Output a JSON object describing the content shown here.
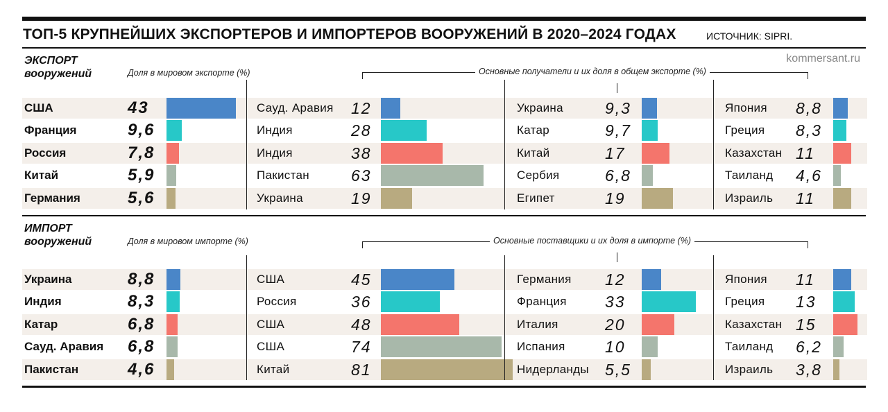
{
  "header": {
    "title": "ТОП-5 КРУПНЕЙШИХ ЭКСПОРТЕРОВ И ИМПОРТЕРОВ ВООРУЖЕНИЙ В 2020–2024 ГОДАХ",
    "source": "ИСТОЧНИК: SIPRI.",
    "site": "kommersant.ru"
  },
  "colors": [
    "#4a86c8",
    "#27c8c8",
    "#f4756c",
    "#a8b8aa",
    "#b8aa80"
  ],
  "export": {
    "title_line1": "ЭКСПОРТ",
    "title_line2": "вооружений",
    "share_label": "Доля в мировом экспорте (%)",
    "partners_label": "Основные получатели и их доля в общем экспорте (%)"
  },
  "import": {
    "title_line1": "ИМПОРТ",
    "title_line2": "вооружений",
    "share_label": "Доля в мировом импорте (%)",
    "partners_label": "Основные поставщики и их доля в импорте (%)"
  },
  "chart_data": [
    {
      "type": "bar",
      "name": "ЭКСПОРТ вооружений",
      "categories": [
        "США",
        "Франция",
        "Россия",
        "Китай",
        "Германия"
      ],
      "values": [
        43,
        9.6,
        7.8,
        5.9,
        5.6
      ],
      "display": [
        "43",
        "9,6",
        "7,8",
        "5,9",
        "5,6"
      ],
      "partners": [
        [
          {
            "name": "Сауд. Аравия",
            "value": 12,
            "display": "12"
          },
          {
            "name": "Украина",
            "value": 9.3,
            "display": "9,3"
          },
          {
            "name": "Япония",
            "value": 8.8,
            "display": "8,8"
          }
        ],
        [
          {
            "name": "Индия",
            "value": 28,
            "display": "28"
          },
          {
            "name": "Катар",
            "value": 9.7,
            "display": "9,7"
          },
          {
            "name": "Греция",
            "value": 8.3,
            "display": "8,3"
          }
        ],
        [
          {
            "name": "Индия",
            "value": 38,
            "display": "38"
          },
          {
            "name": "Китай",
            "value": 17,
            "display": "17"
          },
          {
            "name": "Казахстан",
            "value": 11,
            "display": "11"
          }
        ],
        [
          {
            "name": "Пакистан",
            "value": 63,
            "display": "63"
          },
          {
            "name": "Сербия",
            "value": 6.8,
            "display": "6,8"
          },
          {
            "name": "Таиланд",
            "value": 4.6,
            "display": "4,6"
          }
        ],
        [
          {
            "name": "Украина",
            "value": 19,
            "display": "19"
          },
          {
            "name": "Египет",
            "value": 19,
            "display": "19"
          },
          {
            "name": "Израиль",
            "value": 11,
            "display": "11"
          }
        ]
      ]
    },
    {
      "type": "bar",
      "name": "ИМПОРТ вооружений",
      "categories": [
        "Украина",
        "Индия",
        "Катар",
        "Сауд. Аравия",
        "Пакистан"
      ],
      "values": [
        8.8,
        8.3,
        6.8,
        6.8,
        4.6
      ],
      "display": [
        "8,8",
        "8,3",
        "6,8",
        "6,8",
        "4,6"
      ],
      "partners": [
        [
          {
            "name": "США",
            "value": 45,
            "display": "45"
          },
          {
            "name": "Германия",
            "value": 12,
            "display": "12"
          },
          {
            "name": "Япония",
            "value": 11,
            "display": "11"
          }
        ],
        [
          {
            "name": "Россия",
            "value": 36,
            "display": "36"
          },
          {
            "name": "Франция",
            "value": 33,
            "display": "33"
          },
          {
            "name": "Греция",
            "value": 13,
            "display": "13"
          }
        ],
        [
          {
            "name": "США",
            "value": 48,
            "display": "48"
          },
          {
            "name": "Италия",
            "value": 20,
            "display": "20"
          },
          {
            "name": "Казахстан",
            "value": 15,
            "display": "15"
          }
        ],
        [
          {
            "name": "США",
            "value": 74,
            "display": "74"
          },
          {
            "name": "Испания",
            "value": 10,
            "display": "10"
          },
          {
            "name": "Таиланд",
            "value": 6.2,
            "display": "6,2"
          }
        ],
        [
          {
            "name": "Китай",
            "value": 81,
            "display": "81"
          },
          {
            "name": "Нидерланды",
            "value": 5.5,
            "display": "5,5"
          },
          {
            "name": "Израиль",
            "value": 3.8,
            "display": "3,8"
          }
        ]
      ]
    }
  ]
}
